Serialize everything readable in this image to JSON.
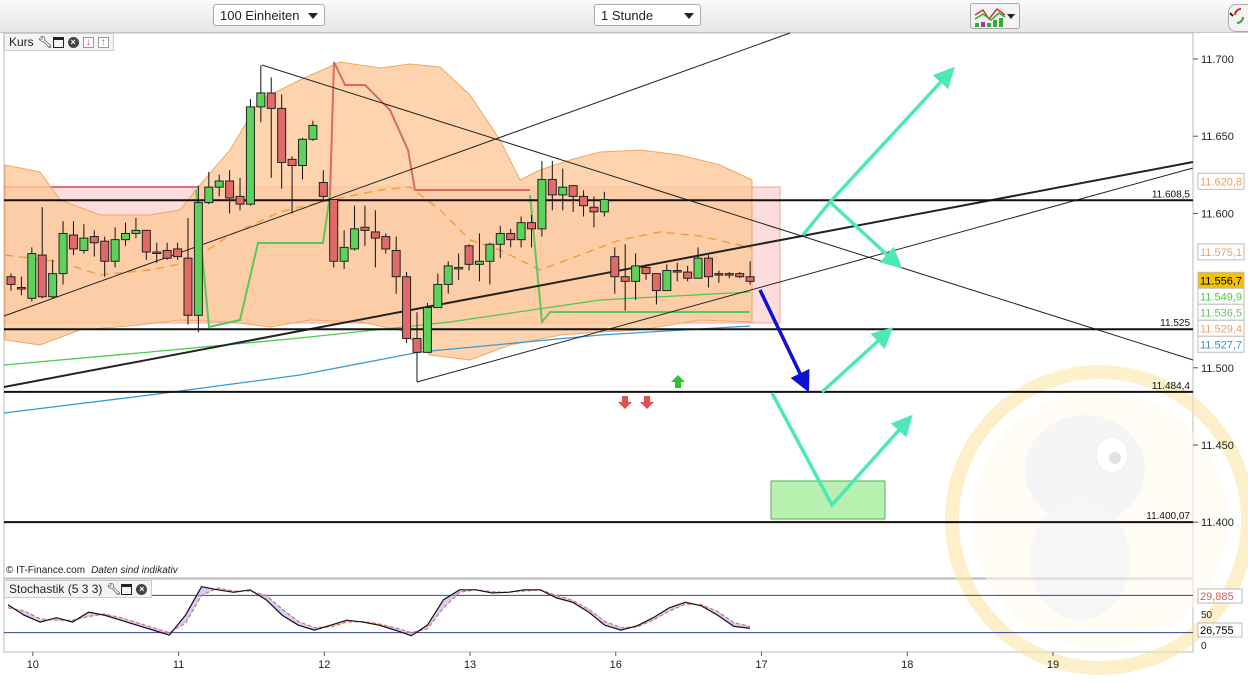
{
  "toolbar": {
    "units_select": "100 Einheiten",
    "interval_select": "1 Stunde",
    "indicator_icon": "chart-indicator-icon",
    "corner_icon": "refresh-arrows-icon"
  },
  "main_panel": {
    "title": "Kurs",
    "icons": [
      "wrench-icon",
      "window-icon",
      "close-icon",
      "arrow-down-icon",
      "arrow-up-icon"
    ]
  },
  "footer": {
    "copyright": "© IT-Finance.com",
    "disclaimer": "Daten sind indikativ"
  },
  "stoch_panel": {
    "title": "Stochastik (5 3 3)"
  },
  "colors": {
    "up_candle": "#5bd35b",
    "down_candle": "#e06a6a",
    "bollinger_fill": "#fcc99a",
    "arrows": "#4de8b8",
    "blue_arrow": "#1010d0",
    "current_price_bg": "#f2c200"
  },
  "chart_data": {
    "type": "candlestick",
    "x_ticks": [
      {
        "label": "10",
        "candle": 2
      },
      {
        "label": "11",
        "candle": 16
      },
      {
        "label": "12",
        "candle": 30
      },
      {
        "label": "13",
        "candle": 44
      },
      {
        "label": "16",
        "candle": 58
      },
      {
        "label": "17",
        "candle": 72
      },
      {
        "label": "18",
        "candle": 86
      },
      {
        "label": "19",
        "candle": 100
      }
    ],
    "y_ticks": [
      {
        "value": 11700,
        "label": "11.700"
      },
      {
        "value": 11650,
        "label": "11.650"
      },
      {
        "value": 11600,
        "label": "11.600"
      },
      {
        "value": 11500,
        "label": "11.500"
      },
      {
        "value": 11450,
        "label": "11.450"
      },
      {
        "value": 11400,
        "label": "11.400"
      }
    ],
    "ylim": [
      11365,
      11716
    ],
    "candles_ohlc": [
      [
        11559,
        11561,
        11550,
        11554
      ],
      [
        11552,
        11559,
        11547,
        11552
      ],
      [
        11545,
        11578,
        11543,
        11574
      ],
      [
        11573,
        11604,
        11545,
        11546
      ],
      [
        11546,
        11570,
        11545,
        11561
      ],
      [
        11561,
        11595,
        11554,
        11587
      ],
      [
        11586,
        11595,
        11573,
        11577
      ],
      [
        11576,
        11593,
        11574,
        11584
      ],
      [
        11585,
        11589,
        11572,
        11581
      ],
      [
        11582,
        11585,
        11559,
        11569
      ],
      [
        11569,
        11591,
        11565,
        11583
      ],
      [
        11583,
        11594,
        11579,
        11587
      ],
      [
        11587,
        11597,
        11584,
        11589
      ],
      [
        11589,
        11589,
        11570,
        11575
      ],
      [
        11575,
        11581,
        11568,
        11575
      ],
      [
        11576,
        11581,
        11570,
        11571
      ],
      [
        11577,
        11581,
        11570,
        11572
      ],
      [
        11571,
        11597,
        11528,
        11534
      ],
      [
        11534,
        11618,
        11523,
        11607
      ],
      [
        11607,
        11627,
        11606,
        11617
      ],
      [
        11617,
        11625,
        11611,
        11621
      ],
      [
        11621,
        11628,
        11600,
        11610
      ],
      [
        11611,
        11623,
        11602,
        11606
      ],
      [
        11606,
        11674,
        11605,
        11669
      ],
      [
        11669,
        11696,
        11659,
        11678
      ],
      [
        11678,
        11688,
        11623,
        11668
      ],
      [
        11668,
        11677,
        11616,
        11633
      ],
      [
        11635,
        11637,
        11600,
        11631
      ],
      [
        11631,
        11649,
        11622,
        11648
      ],
      [
        11648,
        11660,
        11647,
        11657
      ],
      [
        11620,
        11628,
        11609,
        11611
      ],
      [
        11609,
        11609,
        11565,
        11569
      ],
      [
        11569,
        11589,
        11564,
        11578
      ],
      [
        11577,
        11605,
        11576,
        11590
      ],
      [
        11591,
        11605,
        11579,
        11589
      ],
      [
        11588,
        11602,
        11565,
        11584
      ],
      [
        11585,
        11587,
        11574,
        11577
      ],
      [
        11576,
        11585,
        11548,
        11559
      ],
      [
        11559,
        11562,
        11516,
        11519
      ],
      [
        11519,
        11536,
        11491,
        11510
      ],
      [
        11510,
        11542,
        11510,
        11539
      ],
      [
        11539,
        11561,
        11539,
        11554
      ],
      [
        11554,
        11569,
        11548,
        11566
      ],
      [
        11564,
        11574,
        11557,
        11565
      ],
      [
        11579,
        11580,
        11563,
        11567
      ],
      [
        11567,
        11587,
        11556,
        11569
      ],
      [
        11569,
        11581,
        11554,
        11580
      ],
      [
        11580,
        11592,
        11571,
        11587
      ],
      [
        11587,
        11590,
        11578,
        11583
      ],
      [
        11583,
        11598,
        11578,
        11594
      ],
      [
        11594,
        11599,
        11578,
        11590
      ],
      [
        11590,
        11634,
        11585,
        11622
      ],
      [
        11622,
        11634,
        11602,
        11612
      ],
      [
        11612,
        11629,
        11602,
        11617
      ],
      [
        11618,
        11618,
        11601,
        11611
      ],
      [
        11611,
        11615,
        11598,
        11605
      ],
      [
        11604,
        11611,
        11591,
        11601
      ],
      [
        11601,
        11614,
        11598,
        11609
      ],
      [
        11572,
        11578,
        11548,
        11559
      ],
      [
        11559,
        11580,
        11537,
        11556
      ],
      [
        11556,
        11574,
        11544,
        11566
      ],
      [
        11565,
        11567,
        11557,
        11561
      ],
      [
        11561,
        11561,
        11541,
        11550
      ],
      [
        11550,
        11567,
        11550,
        11563
      ],
      [
        11563,
        11568,
        11556,
        11563
      ],
      [
        11562,
        11566,
        11556,
        11558
      ],
      [
        11558,
        11578,
        11558,
        11571
      ],
      [
        11571,
        11573,
        11552,
        11559
      ],
      [
        11561,
        11563,
        11555,
        11561
      ],
      [
        11561,
        11562,
        11558,
        11561
      ],
      [
        11561,
        11562,
        11558,
        11559
      ],
      [
        11559,
        11569,
        11554,
        11556
      ]
    ],
    "levels": [
      {
        "value": 11608.5,
        "label": "11.608,5"
      },
      {
        "value": 11525,
        "label": "11.525"
      },
      {
        "value": 11484.4,
        "label": "11.484,4"
      },
      {
        "value": 11400.07,
        "label": "11.400,07"
      }
    ],
    "price_labels": [
      {
        "value": 11620.8,
        "label": "11.620,8",
        "color": "#f0a060",
        "bg": "#ffffff"
      },
      {
        "value": 11575.1,
        "label": "11.575,1",
        "color": "#f0a060",
        "bg": "#ffffff"
      },
      {
        "value": 11556.7,
        "label": "11.556,7",
        "color": "#000000",
        "bg": "#f2c200"
      },
      {
        "value": 11549.9,
        "label": "11.549,9",
        "color": "#3cd23c",
        "bg": "#ffffff"
      },
      {
        "value": 11536.5,
        "label": "11.536,5",
        "color": "#6cc06c",
        "bg": "#ffffff"
      },
      {
        "value": 11529.4,
        "label": "11.529,4",
        "color": "#f0a060",
        "bg": "#ffffff"
      },
      {
        "value": 11527.7,
        "label": "11.527,7",
        "color": "#3a8fd8",
        "bg": "#ffffff"
      }
    ],
    "stochastic": {
      "y_ticks": [
        {
          "value": 50,
          "label": "50"
        },
        {
          "value": 0,
          "label": "0"
        }
      ],
      "bands": [
        80,
        20
      ],
      "k": [
        65,
        48,
        37,
        44,
        37,
        53,
        48,
        40,
        32,
        24,
        16,
        48,
        94,
        89,
        85,
        89,
        73,
        48,
        32,
        24,
        32,
        40,
        37,
        32,
        24,
        15,
        32,
        73,
        89,
        89,
        84,
        85,
        89,
        89,
        76,
        69,
        53,
        32,
        24,
        31,
        44,
        60,
        69,
        63,
        48,
        30,
        27
      ],
      "d": [
        60,
        55,
        42,
        40,
        40,
        46,
        50,
        44,
        36,
        28,
        20,
        35,
        80,
        92,
        87,
        87,
        80,
        58,
        38,
        28,
        29,
        37,
        38,
        34,
        28,
        20,
        26,
        60,
        85,
        89,
        86,
        85,
        87,
        89,
        80,
        72,
        58,
        38,
        28,
        29,
        40,
        55,
        66,
        65,
        54,
        36,
        30
      ],
      "value_labels": [
        {
          "label": "29,885",
          "color": "#d06060"
        },
        {
          "label": "26,755",
          "color": "#000000"
        }
      ]
    }
  }
}
